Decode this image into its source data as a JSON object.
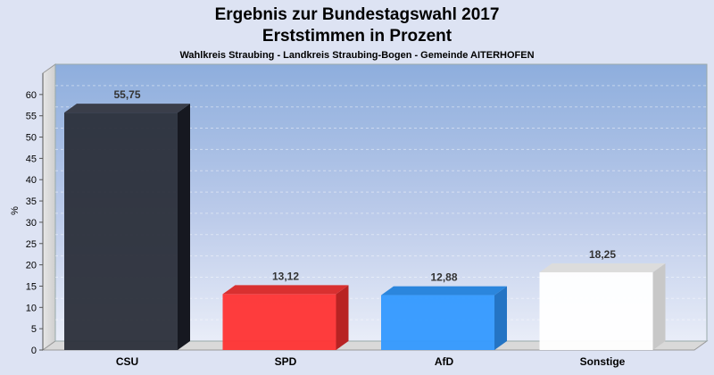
{
  "chart_data": {
    "type": "bar",
    "title": "Ergebnis zur Bundestagswahl 2017",
    "title2": "Erststimmen in Prozent",
    "subtitle": "Wahlkreis Straubing - Landkreis Straubing-Bogen - Gemeinde AITERHOFEN",
    "ylabel": "%",
    "xlabel": "",
    "ylim": [
      0,
      65
    ],
    "yticks": [
      0,
      5,
      10,
      15,
      20,
      25,
      30,
      35,
      40,
      45,
      50,
      55,
      60
    ],
    "grid": true,
    "categories": [
      "CSU",
      "SPD",
      "AfD",
      "Sonstige"
    ],
    "values": [
      55.75,
      13.12,
      12.88,
      18.25
    ],
    "value_labels": [
      "55,75",
      "13,12",
      "12,88",
      "18,25"
    ],
    "colors": [
      "#2b2f3a",
      "#ff3333",
      "#3399ff",
      "#ffffff"
    ],
    "side_colors": [
      "#161820",
      "#b82323",
      "#2474c4",
      "#c8c8c8"
    ],
    "top_colors": [
      "#3a3e4a",
      "#d93030",
      "#2b86dd",
      "#dcdcdc"
    ]
  }
}
